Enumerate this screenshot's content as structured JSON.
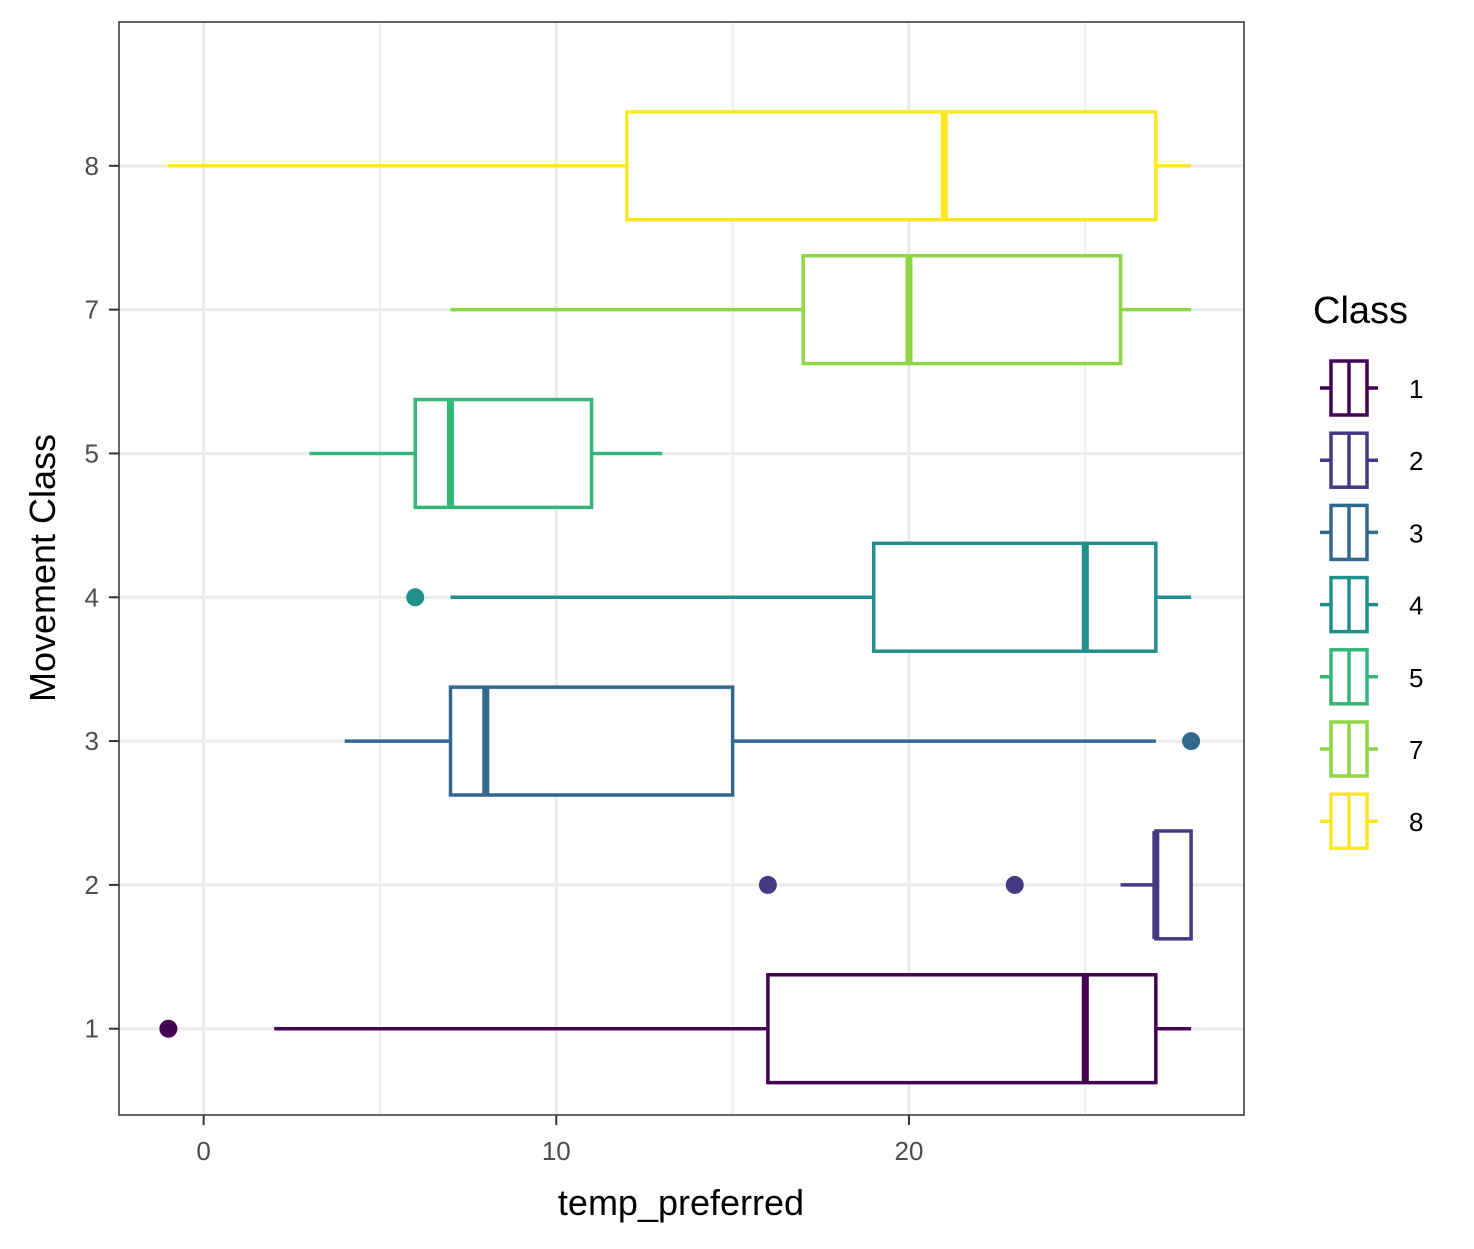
{
  "chart_data": {
    "type": "boxplot",
    "orientation": "horizontal",
    "xlabel": "temp_preferred",
    "ylabel": "Movement Class",
    "xlim": [
      -2.4,
      29.5
    ],
    "x_ticks": [
      0,
      10,
      20
    ],
    "x_minor_ticks": [
      5,
      15,
      25
    ],
    "categories": [
      "1",
      "2",
      "3",
      "4",
      "5",
      "7",
      "8"
    ],
    "legend": {
      "title": "Class",
      "position": "right",
      "entries": [
        "1",
        "2",
        "3",
        "4",
        "5",
        "7",
        "8"
      ]
    },
    "grid": true,
    "series": [
      {
        "name": "1",
        "color": "#440154",
        "whisker_low": 2,
        "q1": 16,
        "median": 25,
        "q3": 27,
        "whisker_high": 28,
        "outliers": [
          -1
        ]
      },
      {
        "name": "2",
        "color": "#443A83",
        "whisker_low": 26,
        "q1": 27,
        "median": 27,
        "q3": 28,
        "whisker_high": 28,
        "outliers": [
          16,
          23
        ]
      },
      {
        "name": "3",
        "color": "#31688E",
        "whisker_low": 4,
        "q1": 7,
        "median": 8,
        "q3": 15,
        "whisker_high": 27,
        "outliers": [
          28
        ]
      },
      {
        "name": "4",
        "color": "#21908C",
        "whisker_low": 7,
        "q1": 19,
        "median": 25,
        "q3": 27,
        "whisker_high": 28,
        "outliers": [
          6
        ]
      },
      {
        "name": "5",
        "color": "#35B779",
        "whisker_low": 3,
        "q1": 6,
        "median": 7,
        "q3": 11,
        "whisker_high": 13,
        "outliers": []
      },
      {
        "name": "7",
        "color": "#8FD744",
        "whisker_low": 7,
        "q1": 17,
        "median": 20,
        "q3": 26,
        "whisker_high": 28,
        "outliers": []
      },
      {
        "name": "8",
        "color": "#FDE725",
        "whisker_low": -1,
        "q1": 12,
        "median": 21,
        "q3": 27,
        "whisker_high": 28,
        "outliers": []
      }
    ]
  }
}
